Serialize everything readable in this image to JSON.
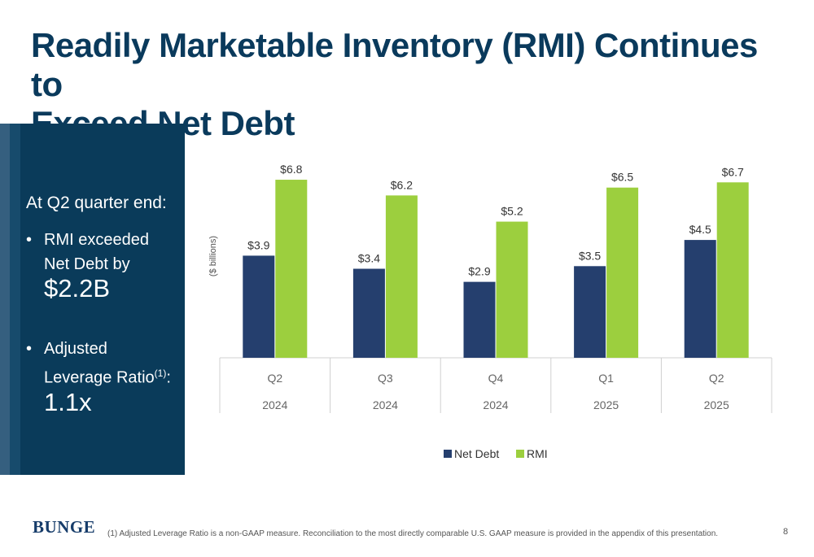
{
  "title": {
    "line1": "Readily Marketable Inventory (RMI) Continues to",
    "line2": "Exceed Net Debt"
  },
  "panel": {
    "heading": "At Q2 quarter end:",
    "bullet1_text": "RMI exceeded Net Debt by",
    "bullet1_value": "$2.2B",
    "bullet2_text": "Adjusted Leverage Ratio",
    "bullet2_sup": "(1)",
    "bullet2_colon": ":",
    "bullet2_value": "1.1x"
  },
  "chart_data": {
    "type": "bar",
    "ylabel": "($ billions)",
    "categories": [
      {
        "quarter": "Q2",
        "year": "2024"
      },
      {
        "quarter": "Q3",
        "year": "2024"
      },
      {
        "quarter": "Q4",
        "year": "2024"
      },
      {
        "quarter": "Q1",
        "year": "2025"
      },
      {
        "quarter": "Q2",
        "year": "2025"
      }
    ],
    "series": [
      {
        "name": "Net Debt",
        "color": "#253f6e",
        "values": [
          3.9,
          3.4,
          2.9,
          3.5,
          4.5
        ],
        "labels": [
          "$3.9",
          "$3.4",
          "$2.9",
          "$3.5",
          "$4.5"
        ]
      },
      {
        "name": "RMI",
        "color": "#9ccf3e",
        "values": [
          6.8,
          6.2,
          5.2,
          6.5,
          6.7
        ],
        "labels": [
          "$6.8",
          "$6.2",
          "$5.2",
          "$6.5",
          "$6.7"
        ]
      }
    ],
    "ylim": [
      0,
      8
    ],
    "legend": "bottom"
  },
  "footer": {
    "logo": "BUNGE",
    "footnote": "(1)  Adjusted Leverage Ratio is a non-GAAP measure. Reconciliation to the most directly comparable U.S. GAAP measure is provided in the appendix of this presentation.",
    "page_number": "8"
  }
}
